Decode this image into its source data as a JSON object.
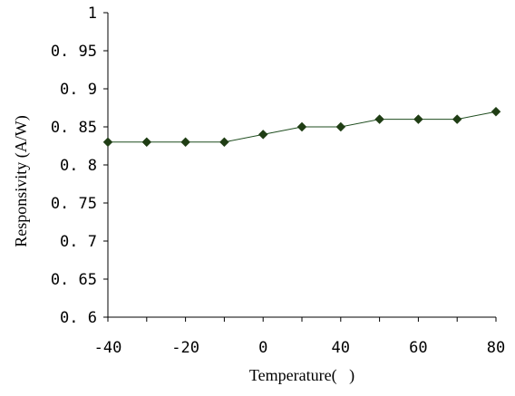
{
  "chart_data": {
    "type": "line",
    "xlabel": "Temperature(   )",
    "ylabel": "Responsivity (A/W)",
    "x": [
      -40,
      -30,
      -20,
      -10,
      0,
      20,
      40,
      50,
      60,
      70,
      80
    ],
    "xticks": [
      "-40",
      "-20",
      "0",
      "40",
      "60",
      "80"
    ],
    "ylim": [
      0.6,
      1
    ],
    "yticks": [
      "0.6",
      "0.65",
      "0.7",
      "0.75",
      "0.8",
      "0.85",
      "0.9",
      "0.95",
      "1"
    ],
    "series": [
      {
        "values": [
          0.83,
          0.83,
          0.83,
          0.83,
          0.84,
          0.85,
          0.85,
          0.86,
          0.86,
          0.86,
          0.87
        ]
      }
    ],
    "grid": false,
    "legend": "none",
    "colors": {
      "line": "#1f4d1f",
      "marker": "#1f3d14",
      "axis": "#000000"
    }
  }
}
